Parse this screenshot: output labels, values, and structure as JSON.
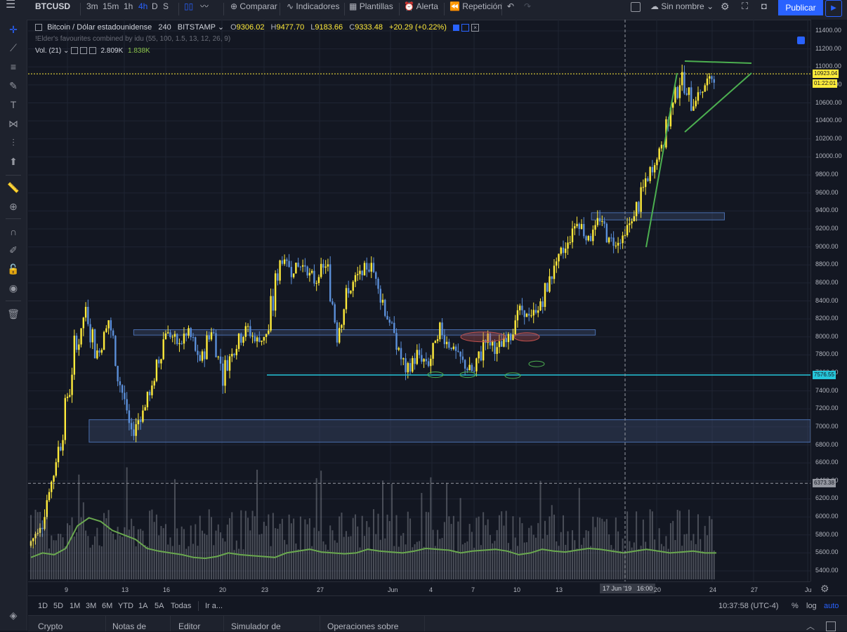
{
  "top_toolbar": {
    "symbol": "BTCUSD",
    "intervals": [
      "3m",
      "15m",
      "1h",
      "4h",
      "D",
      "S"
    ],
    "active_interval": "4h",
    "compare_label": "Comparar",
    "indicators_label": "Indicadores",
    "templates_label": "Plantillas",
    "alert_label": "Alerta",
    "replay_label": "Repetición",
    "layout_name": "Sin nombre",
    "publish_label": "Publicar"
  },
  "legend": {
    "title": "Bitcoin / Dólar estadounidense",
    "interval": "240",
    "exchange": "BITSTAMP",
    "open_label": "O",
    "open": "9306.02",
    "high_label": "H",
    "high": "9477.70",
    "low_label": "L",
    "low": "9183.66",
    "close_label": "C",
    "close": "9333.48",
    "change": "+20.29 (+0.22%)",
    "indicator": "!Elder's favourites combined by idu (55, 100, 1.5, 13, 12, 26, 9)",
    "volume_label": "Vol. (21)",
    "volume_value": "2.809K",
    "volume_ma": "1.838K"
  },
  "chart_data": {
    "type": "candlestick",
    "symbol": "BTCUSD",
    "interval": "240",
    "ylim": [
      5300,
      11500
    ],
    "y_ticks": [
      "11400.00",
      "11200.00",
      "11000.00",
      "10800.00",
      "10600.00",
      "10400.00",
      "10200.00",
      "10000.00",
      "9800.00",
      "9600.00",
      "9400.00",
      "9200.00",
      "9000.00",
      "8800.00",
      "8600.00",
      "8400.00",
      "8200.00",
      "8000.00",
      "7800.00",
      "7600.00",
      "7400.00",
      "7200.00",
      "7000.00",
      "6800.00",
      "6600.00",
      "6400.00",
      "6200.00",
      "6000.00",
      "5800.00",
      "5600.00",
      "5400.00"
    ],
    "x_ticks": [
      "9",
      "13",
      "16",
      "20",
      "23",
      "27",
      "Jun",
      "4",
      "7",
      "10",
      "13",
      "20",
      "24",
      "27",
      "Ju"
    ],
    "crosshair_time_label": "17 Jun '19   16:00",
    "price_labels": [
      {
        "value": "10923.04",
        "color": "#ffeb3b"
      },
      {
        "value": "01:22:01",
        "color": "#ffeb3b"
      },
      {
        "value": "7576.55",
        "color": "#26c6da"
      },
      {
        "value": "6373.38",
        "color": "#9598a1"
      }
    ],
    "price_path": [
      [
        5680,
        5900
      ],
      [
        5900,
        6400
      ],
      [
        6400,
        7000
      ],
      [
        7000,
        7800
      ],
      [
        7800,
        8300
      ],
      [
        8300,
        7800
      ],
      [
        7800,
        8200
      ],
      [
        8200,
        7500
      ],
      [
        7500,
        6900
      ],
      [
        6900,
        7200
      ],
      [
        7200,
        7500
      ],
      [
        7500,
        8100
      ],
      [
        8100,
        7900
      ],
      [
        7900,
        8050
      ],
      [
        8050,
        7700
      ],
      [
        7700,
        8100
      ],
      [
        8100,
        7600
      ],
      [
        7600,
        7900
      ],
      [
        7900,
        8100
      ],
      [
        8100,
        7950
      ],
      [
        7950,
        8050
      ],
      [
        8050,
        8900
      ],
      [
        8900,
        8750
      ],
      [
        8750,
        8800
      ],
      [
        8800,
        8600
      ],
      [
        8600,
        8800
      ],
      [
        8800,
        8100
      ],
      [
        8100,
        8500
      ],
      [
        8500,
        8700
      ],
      [
        8700,
        8800
      ],
      [
        8800,
        8400
      ],
      [
        8400,
        8000
      ],
      [
        8000,
        7600
      ],
      [
        7600,
        7800
      ],
      [
        7800,
        7700
      ],
      [
        7700,
        8050
      ],
      [
        8050,
        7900
      ],
      [
        7900,
        7700
      ],
      [
        7700,
        7600
      ],
      [
        7600,
        8000
      ],
      [
        8000,
        7850
      ],
      [
        7850,
        8000
      ],
      [
        8000,
        8300
      ],
      [
        8300,
        8200
      ],
      [
        8200,
        8400
      ],
      [
        8400,
        8800
      ],
      [
        8800,
        9000
      ],
      [
        9000,
        9300
      ],
      [
        9300,
        9100
      ],
      [
        9100,
        9300
      ],
      [
        9300,
        9050
      ],
      [
        9050,
        9100
      ],
      [
        9100,
        9350
      ],
      [
        9350,
        9700
      ],
      [
        9700,
        10000
      ],
      [
        10000,
        10400
      ],
      [
        10400,
        10900
      ],
      [
        10900,
        10600
      ],
      [
        10600,
        10750
      ],
      [
        10750,
        10923
      ]
    ],
    "volume_ma": [
      5550,
      5600,
      5580,
      5650,
      5900,
      5990,
      5950,
      5850,
      5800,
      5750,
      5650,
      5620,
      5600,
      5580,
      5550,
      5540,
      5560,
      5600,
      5580,
      5570,
      5560,
      5550,
      5600,
      5620,
      5640,
      5610,
      5600,
      5590,
      5600,
      5640,
      5620,
      5610,
      5600,
      5620,
      5650,
      5640,
      5630,
      5600,
      5620,
      5630,
      5640,
      5620,
      5580,
      5600,
      5640,
      5620,
      5610,
      5630,
      5650,
      5640,
      5620,
      5600,
      5620,
      5640,
      5620,
      5600,
      5610,
      5620,
      5600,
      5600
    ],
    "zones": [
      {
        "from": 8080,
        "to": 8020,
        "x_from": 0.135,
        "x_to": 0.725
      },
      {
        "from": 9380,
        "to": 9300,
        "x_from": 0.72,
        "x_to": 0.89
      },
      {
        "from": 7080,
        "to": 6830,
        "x_from": 0.078,
        "x_to": 1.0
      }
    ],
    "support_line": 7576.55,
    "dashed_line": 6373.38,
    "current_price_line": 10923.04
  },
  "time_bar": {
    "ranges": [
      "1D",
      "5D",
      "1M",
      "3M",
      "6M",
      "YTD",
      "1A",
      "5A",
      "Todas"
    ],
    "goto_label": "Ir a...",
    "clock": "10:37:58 (UTC-4)",
    "percent_label": "%",
    "log_label": "log",
    "auto_label": "auto"
  },
  "bottom_tabs": [
    "Crypto Screener",
    "Notas de texto",
    "Editor Pine",
    "Simulador de estrategia",
    "Operaciones sobre papel"
  ],
  "icons": [
    "menu-icon",
    "crosshair-icon",
    "trendline-icon",
    "fib-icon",
    "brush-icon",
    "text-icon",
    "pattern-icon",
    "prediction-icon",
    "arrow-up-icon",
    "ruler-icon",
    "zoom-icon",
    "magnet-icon",
    "lock-drawing-icon",
    "lock-icon",
    "eye-icon",
    "trash-icon",
    "layers-icon"
  ]
}
